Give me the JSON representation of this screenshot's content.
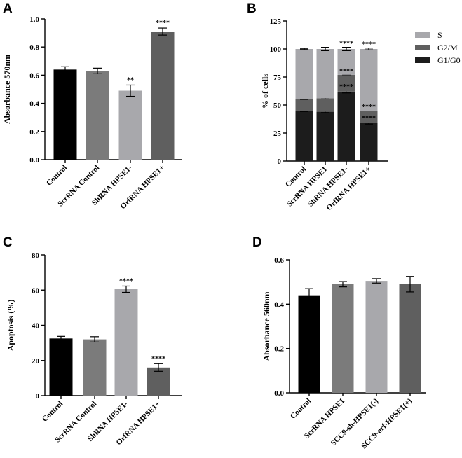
{
  "chart_data": [
    {
      "panel": "A",
      "type": "bar",
      "title": "",
      "xlabel": "",
      "ylabel": "Absorbance 570nm",
      "ylim": [
        0,
        1.0
      ],
      "yticks": [
        "0.0",
        "0.2",
        "0.4",
        "0.6",
        "0.8",
        "1.0"
      ],
      "categories": [
        "Control",
        "ScrRNA Control",
        "ShRNA HPSE1-",
        "OrfRNA HPSE1+"
      ],
      "values": [
        0.64,
        0.63,
        0.49,
        0.91
      ],
      "errors": [
        0.02,
        0.02,
        0.04,
        0.025
      ],
      "colors": [
        "#000000",
        "#7b7b7b",
        "#a8a8ac",
        "#5f5f5f"
      ],
      "annotations": [
        "",
        "",
        "**",
        "****"
      ]
    },
    {
      "panel": "B",
      "type": "bar",
      "stacked": true,
      "title": "",
      "xlabel": "",
      "ylabel": "% of cells",
      "ylim": [
        0,
        125
      ],
      "yticks": [
        "0",
        "25",
        "50",
        "75",
        "100",
        "125"
      ],
      "categories": [
        "Control",
        "ScrRNA HPSE1",
        "ShRNA HPSE1-",
        "OrfRNA HPSE1+"
      ],
      "series": [
        {
          "name": "G1/G0",
          "color": "#1c1c1c",
          "values": [
            45,
            44,
            62,
            34
          ],
          "errors": [
            0.8,
            0.8,
            1.2,
            1.0
          ],
          "annotations": [
            "",
            "",
            "****",
            "****"
          ]
        },
        {
          "name": "G2/M",
          "color": "#5f5f5f",
          "values": [
            10,
            12,
            15,
            11
          ],
          "errors": [
            0,
            0.6,
            0,
            0
          ],
          "annotations": [
            "",
            "",
            "****",
            "****"
          ]
        },
        {
          "name": "S",
          "color": "#a8a8ac",
          "values": [
            45,
            44,
            23,
            55
          ],
          "errors": [
            0.5,
            1.5,
            1.5,
            0.8
          ],
          "annotations": [
            "",
            "",
            "****",
            "****"
          ]
        }
      ],
      "legend": [
        "S",
        "G2/M",
        "G1/G0"
      ],
      "legend_position": "top-right"
    },
    {
      "panel": "C",
      "type": "bar",
      "title": "",
      "xlabel": "",
      "ylabel": "Apoptosis (%)",
      "ylim": [
        0,
        80
      ],
      "yticks": [
        "0",
        "20",
        "40",
        "60",
        "80"
      ],
      "categories": [
        "Control",
        "ScrRNA Control",
        "ShRNA HPSE1-",
        "OrfRNA HPSE1+"
      ],
      "values": [
        32.5,
        32,
        60.5,
        16
      ],
      "errors": [
        1.2,
        1.5,
        1.8,
        2.2
      ],
      "colors": [
        "#000000",
        "#7b7b7b",
        "#a8a8ac",
        "#5f5f5f"
      ],
      "annotations": [
        "",
        "",
        "****",
        "****"
      ]
    },
    {
      "panel": "D",
      "type": "bar",
      "title": "",
      "xlabel": "",
      "ylabel": "Absorbance 560nm",
      "ylim": [
        0,
        0.6
      ],
      "yticks": [
        "0.0",
        "0.2",
        "0.4",
        "0.6"
      ],
      "categories": [
        "Control",
        "ScrRNA HPSE1",
        "SCC9-sh-HPSE1(-)",
        "SCC9-orf-HPSE1(+)"
      ],
      "values": [
        0.44,
        0.49,
        0.505,
        0.49
      ],
      "errors": [
        0.03,
        0.012,
        0.01,
        0.035
      ],
      "colors": [
        "#000000",
        "#7b7b7b",
        "#a8a8ac",
        "#5f5f5f"
      ],
      "annotations": [
        "",
        "",
        "",
        ""
      ]
    }
  ]
}
